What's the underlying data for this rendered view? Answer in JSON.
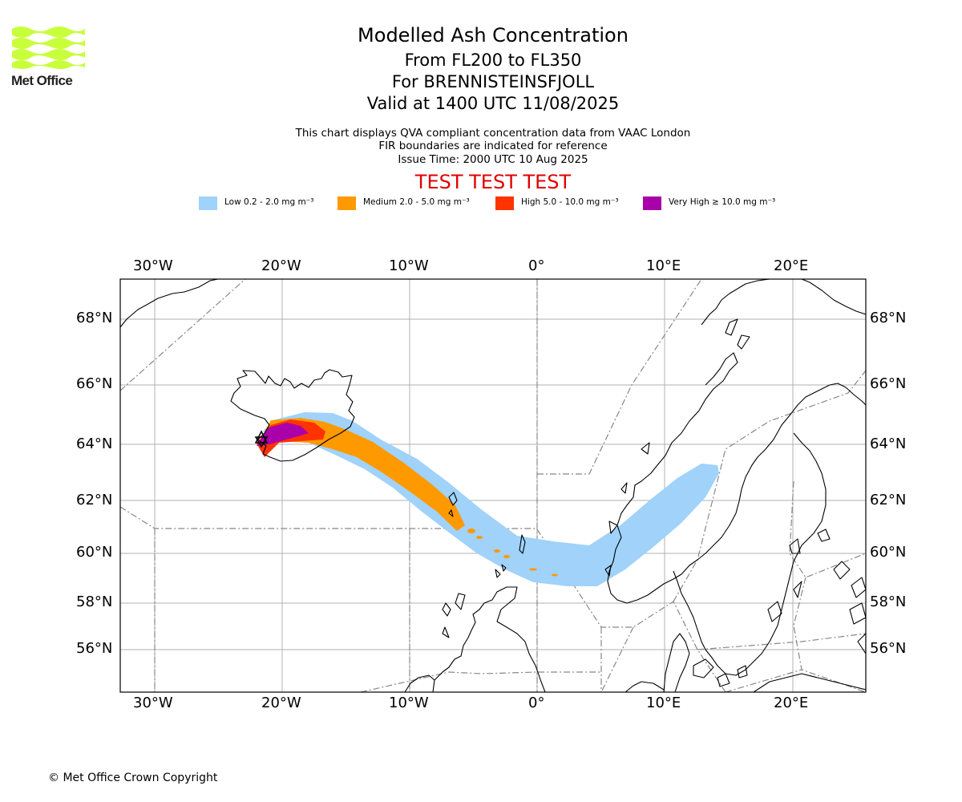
{
  "logo": {
    "text": "Met Office",
    "color": "#c8ff3a"
  },
  "header": {
    "title": "Modelled Ash Concentration",
    "levels": "From FL200 to FL350",
    "volcano": "For BRENNISTEINSFJOLL",
    "valid": "Valid at 1400 UTC 11/08/2025",
    "note1": "This chart displays QVA compliant concentration data from VAAC London",
    "note2": "FIR boundaries are indicated for reference",
    "issue": "Issue Time: 2000 UTC 10 Aug 2025",
    "test": "TEST TEST TEST"
  },
  "legend": [
    {
      "label": "Low 0.2 - 2.0 mg m⁻³",
      "color": "#a0d2fa"
    },
    {
      "label": "Medium 2.0 - 5.0 mg m⁻³",
      "color": "#ff9900"
    },
    {
      "label": "High 5.0 - 10.0 mg m⁻³",
      "color": "#ff3300"
    },
    {
      "label": "Very High ≥ 10.0 mg m⁻³",
      "color": "#aa00aa"
    }
  ],
  "axes": {
    "lon_labels": [
      "30°W",
      "20°W",
      "10°W",
      "0°",
      "10°E",
      "20°E"
    ],
    "lat_labels": [
      "68°N",
      "66°N",
      "64°N",
      "62°N",
      "60°N",
      "58°N",
      "56°N"
    ]
  },
  "footer": {
    "copyright": "© Met Office Crown Copyright"
  }
}
